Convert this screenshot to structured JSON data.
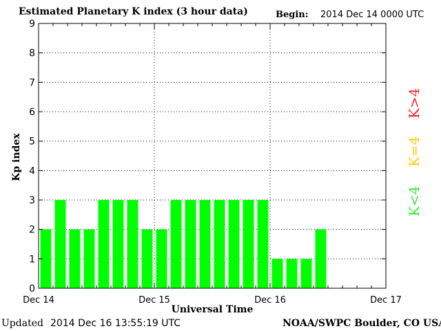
{
  "header": {
    "title": "Estimated Planetary K index (3 hour data)",
    "begin_label": "Begin:",
    "begin_value": "2014 Dec 14 0000 UTC"
  },
  "footer": {
    "updated_label": "Updated",
    "updated_value": "2014 Dec 16 13:55:19 UTC",
    "credit": "NOAA/SWPC Boulder, CO USA"
  },
  "legend": {
    "items": [
      {
        "label": "K<4",
        "color": "#33ee33"
      },
      {
        "label": "K=4",
        "color": "#ffcc00"
      },
      {
        "label": "K>4",
        "color": "#ff2222"
      }
    ]
  },
  "colors": {
    "bar": "#00ff00",
    "grid": "#000000"
  },
  "chart_data": {
    "type": "bar",
    "title": "Estimated Planetary K index (3 hour data)",
    "xlabel": "Universal Time",
    "ylabel": "Kp index",
    "ylim": [
      0,
      9
    ],
    "yticks": [
      "0",
      "1",
      "2",
      "3",
      "4",
      "5",
      "6",
      "7",
      "8",
      "9"
    ],
    "xticks": [
      "Dec 14",
      "Dec 15",
      "Dec 16",
      "Dec 17"
    ],
    "x_period_count": 24,
    "grid": true,
    "series": [
      {
        "values": [
          2,
          3,
          2,
          2,
          3,
          3,
          3,
          2,
          2,
          3,
          3,
          3,
          3,
          3,
          3,
          3,
          1,
          1,
          1,
          2
        ]
      }
    ]
  }
}
